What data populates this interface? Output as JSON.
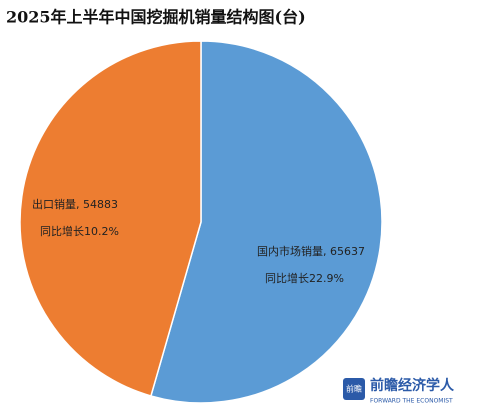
{
  "chart_data": {
    "type": "pie",
    "title": "2025年上半年中国挖掘机销量结构图(台)",
    "categories": [
      "国内市场销量",
      "出口销量"
    ],
    "values": [
      65637,
      54883
    ],
    "value_labels": [
      "国内市场销量, 65637",
      "出口销量, 54883"
    ],
    "annotations": [
      "同比增长22.9%",
      "同比增长10.2%"
    ],
    "colors": [
      "#5b9bd5",
      "#ed7d31"
    ]
  },
  "watermark": {
    "logo": "前瞻",
    "brand": "前瞻经济学人",
    "tagline": "FORWARD THE ECONOMIST"
  }
}
